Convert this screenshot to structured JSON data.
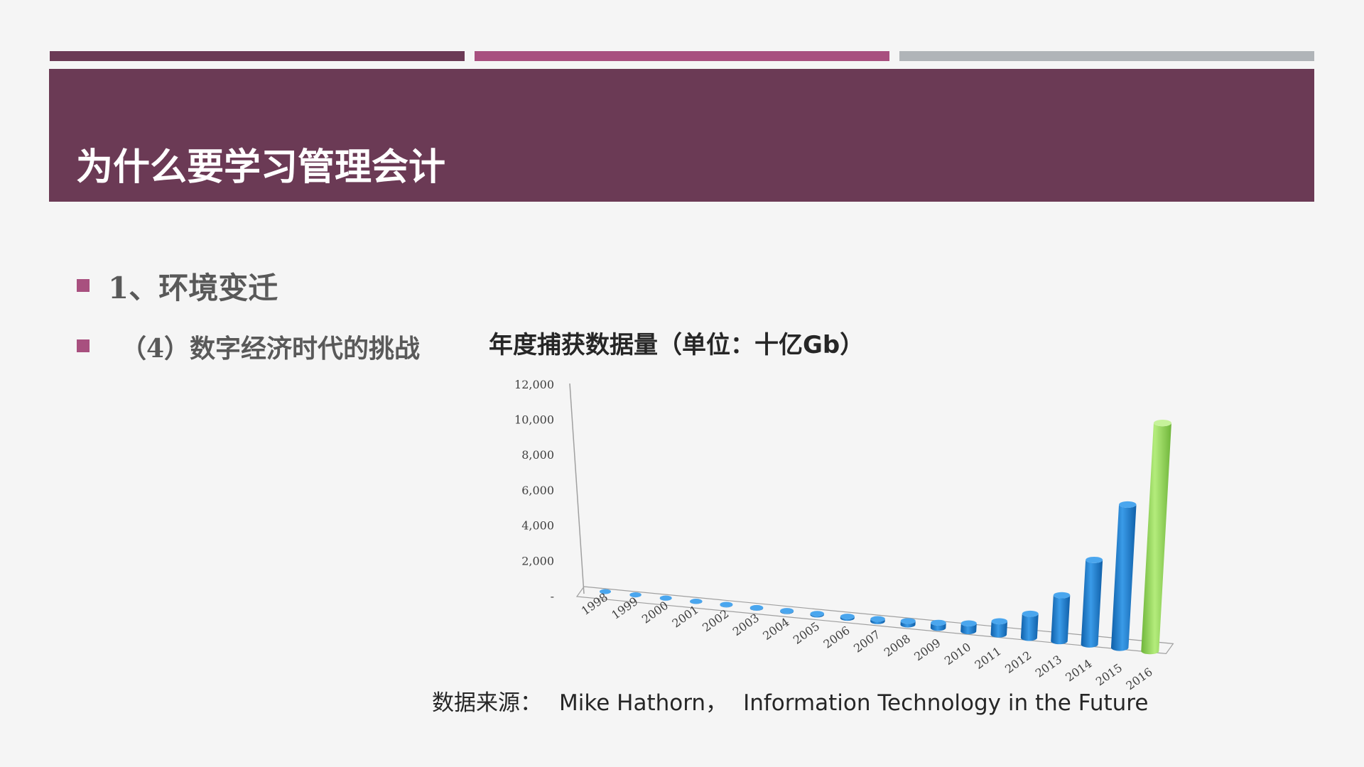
{
  "colors": {
    "background": "#f5f5f5",
    "title_bar": "#6b3a55",
    "stripe1": "#6b3a55",
    "stripe2": "#a8507f",
    "stripe3": "#b0b4b8",
    "bullet": "#a8507f",
    "bar_blue": "#1f7fd0",
    "bar_green": "#8fd14f"
  },
  "slide": {
    "title": "为什么要学习管理会计"
  },
  "bullets": [
    {
      "text": "1、环境变迁"
    },
    {
      "text": "（4）数字经济时代的挑战"
    }
  ],
  "chart_data": {
    "type": "bar",
    "title": "年度捕获数据量（单位：十亿Gb）",
    "categories": [
      "1998",
      "1999",
      "2000",
      "2001",
      "2002",
      "2003",
      "2004",
      "2005",
      "2006",
      "2007",
      "2008",
      "2009",
      "2010",
      "2011",
      "2012",
      "2013",
      "2014",
      "2015",
      "2016"
    ],
    "values": [
      1,
      3,
      5,
      8,
      12,
      18,
      27,
      40,
      61,
      92,
      140,
      200,
      300,
      500,
      900,
      1700,
      3100,
      5200,
      8200
    ],
    "highlight_last": true,
    "yticks": [
      "-",
      "2,000",
      "4,000",
      "6,000",
      "8,000",
      "10,000",
      "12,000"
    ],
    "ylim": [
      0,
      12000
    ],
    "xlabel": "",
    "ylabel": "",
    "grid": false,
    "legend": "none"
  },
  "source": {
    "prefix": "数据来源：",
    "author": "Mike Hathorn，",
    "work": "Information Technology in the Future"
  }
}
